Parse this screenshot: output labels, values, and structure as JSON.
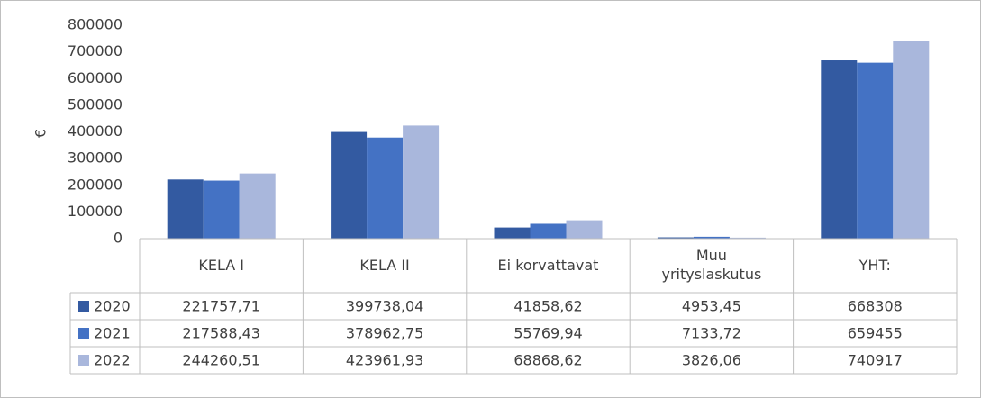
{
  "chart_data": {
    "type": "bar",
    "y_label": "€",
    "categories": [
      "KELA I",
      "KELA II",
      "Ei korvattavat",
      "Muu yrityslaskutus",
      "YHT:"
    ],
    "series": [
      {
        "name": "2020",
        "color": "#335aa1",
        "values": [
          221757.71,
          399738.04,
          41858.62,
          4953.45,
          668308
        ],
        "value_labels": [
          "221757,71",
          "399738,04",
          "41858,62",
          "4953,45",
          "668308"
        ]
      },
      {
        "name": "2021",
        "color": "#4472c4",
        "values": [
          217588.43,
          378962.75,
          55769.94,
          7133.72,
          659455
        ],
        "value_labels": [
          "217588,43",
          "378962,75",
          "55769,94",
          "7133,72",
          "659455"
        ]
      },
      {
        "name": "2022",
        "color": "#a9b7dc",
        "values": [
          244260.51,
          423961.93,
          68868.62,
          3826.06,
          740917
        ],
        "value_labels": [
          "244260,51",
          "423961,93",
          "68868,62",
          "3826,06",
          "740917"
        ]
      }
    ],
    "ylim": [
      0,
      800000
    ],
    "yticks": [
      0,
      100000,
      200000,
      300000,
      400000,
      500000,
      600000,
      700000,
      800000
    ],
    "grid": false
  }
}
